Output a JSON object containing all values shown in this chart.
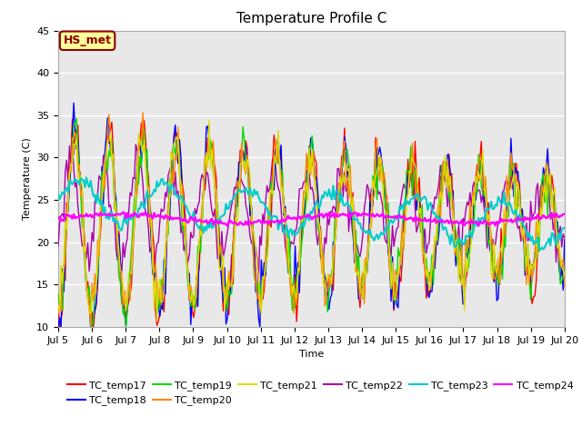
{
  "title": "Temperature Profile C",
  "xlabel": "Time",
  "ylabel": "Temperature (C)",
  "ylim": [
    10,
    45
  ],
  "series_colors": {
    "TC_temp17": "#ff0000",
    "TC_temp18": "#0000ff",
    "TC_temp19": "#00dd00",
    "TC_temp20": "#ff8800",
    "TC_temp21": "#dddd00",
    "TC_temp22": "#aa00aa",
    "TC_temp23": "#00cccc",
    "TC_temp24": "#ff00ff"
  },
  "xtick_labels": [
    "Jul 5",
    "Jul 6",
    "Jul 7",
    "Jul 8",
    "Jul 9",
    "Jul 10",
    "Jul 11",
    "Jul 12",
    "Jul 13",
    "Jul 14",
    "Jul 15",
    "Jul 16",
    "Jul 17",
    "Jul 18",
    "Jul 19",
    "Jul 20"
  ],
  "ytick_vals": [
    10,
    15,
    20,
    25,
    30,
    35,
    40,
    45
  ],
  "annotation_text": "HS_met",
  "annotation_color": "#8b0000",
  "annotation_bg": "#ffff99",
  "background_color": "#e8e8e8",
  "title_fontsize": 11,
  "label_fontsize": 8,
  "tick_fontsize": 8,
  "legend_fontsize": 8
}
